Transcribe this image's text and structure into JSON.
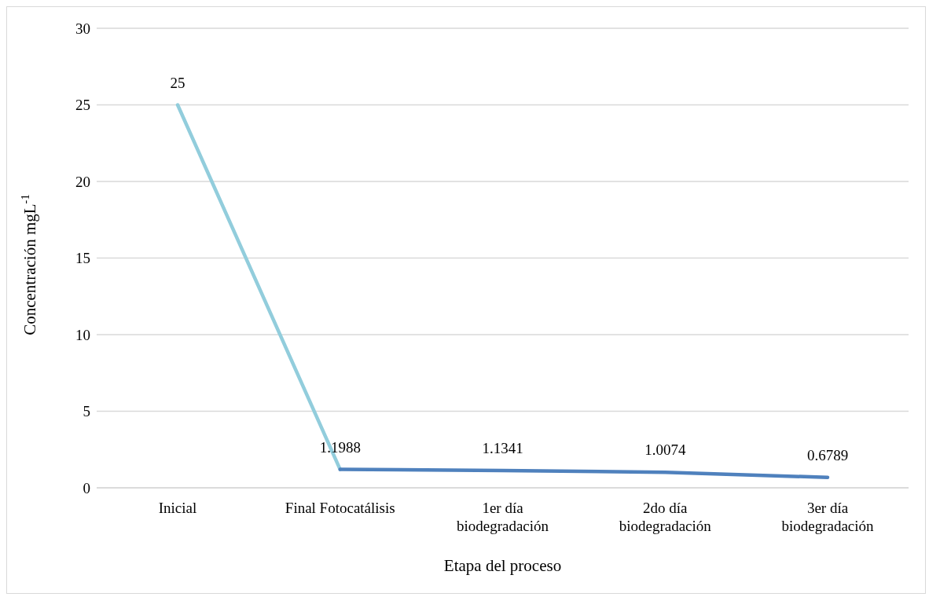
{
  "chart_data": {
    "type": "line",
    "xlabel": "Etapa del proceso",
    "ylabel": "Concentración mgL$^{-1}$",
    "categories": [
      "Inicial",
      "Final Fotocatálisis",
      "1er día biodegradación",
      "2do día biodegradación",
      "3er día biodegradación"
    ],
    "series": [
      {
        "color": "#92cddc",
        "values": [
          25,
          1.1988,
          null,
          null,
          null
        ],
        "value_labels": [
          "25",
          null,
          null,
          null,
          null
        ]
      },
      {
        "color": "#4f81bd",
        "values": [
          null,
          1.1988,
          1.1341,
          1.0074,
          0.6789
        ],
        "value_labels": [
          null,
          "1.1988",
          "1.1341",
          "1.0074",
          "0.6789"
        ]
      }
    ],
    "ylim": [
      0,
      30
    ],
    "yticks": [
      0,
      5,
      10,
      15,
      20,
      25,
      30
    ],
    "grid": "y",
    "legend": false,
    "marker": "none",
    "line_style": "solid"
  }
}
